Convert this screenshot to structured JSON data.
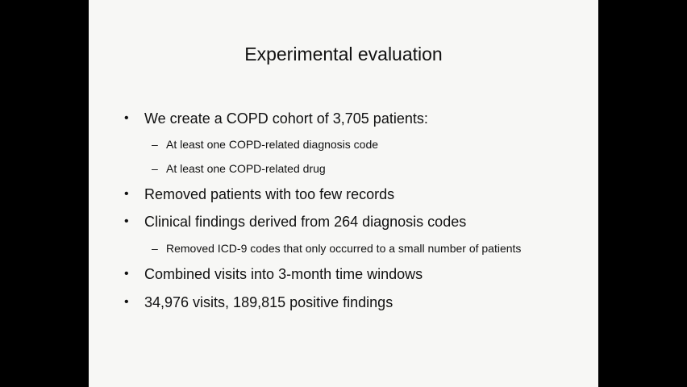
{
  "slide": {
    "title": "Experimental evaluation",
    "bullet_marker": "•",
    "sub_marker": "–",
    "items": [
      {
        "text": "We create a COPD cohort of 3,705 patients:",
        "sub": [
          "At least one COPD-related diagnosis code",
          "At least one COPD-related drug"
        ]
      },
      {
        "text": "Removed patients with too few records"
      },
      {
        "text": "Clinical findings derived from 264 diagnosis codes",
        "sub": [
          "Removed ICD-9 codes that only occurred to a small number of patients"
        ]
      },
      {
        "text": "Combined visits into 3-month time windows"
      },
      {
        "text": "34,976 visits, 189,815 positive findings"
      }
    ]
  }
}
